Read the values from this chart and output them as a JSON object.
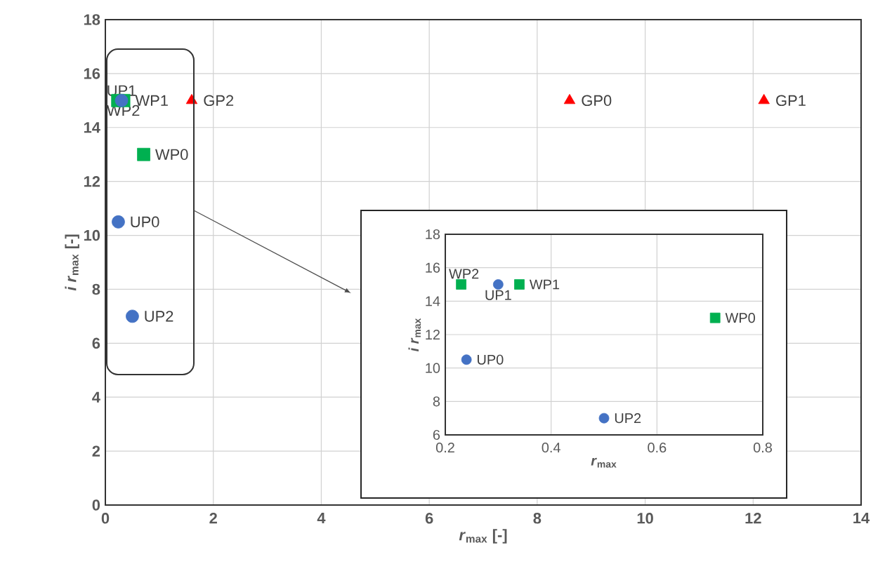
{
  "chart_data": [
    {
      "type": "scatter",
      "xlabel": "*r*$_{max}$ [-]",
      "ylabel": "*i r*$_{max}$ [-]",
      "xlim": [
        0,
        14
      ],
      "ylim": [
        0,
        18
      ],
      "xticks": [
        0,
        2,
        4,
        6,
        8,
        10,
        12,
        14
      ],
      "yticks": [
        0,
        2,
        4,
        6,
        8,
        10,
        12,
        14,
        16,
        18
      ],
      "grid": true,
      "series": [
        {
          "name": "UP0",
          "color": "#4472c4",
          "marker": "circle",
          "x": [
            0.24
          ],
          "values": [
            10.5
          ]
        },
        {
          "name": "UP1",
          "color": "#4472c4",
          "marker": "circle",
          "x": [
            0.3
          ],
          "values": [
            15
          ]
        },
        {
          "name": "UP2",
          "color": "#4472c4",
          "marker": "circle",
          "x": [
            0.5
          ],
          "values": [
            7
          ]
        },
        {
          "name": "WP0",
          "color": "#00b050",
          "marker": "square",
          "x": [
            0.71
          ],
          "values": [
            13
          ]
        },
        {
          "name": "WP1",
          "color": "#00b050",
          "marker": "square",
          "x": [
            0.34
          ],
          "values": [
            15
          ]
        },
        {
          "name": "WP2",
          "color": "#00b050",
          "marker": "square",
          "x": [
            0.23
          ],
          "values": [
            15
          ]
        },
        {
          "name": "GP0",
          "color": "#ff0000",
          "marker": "triangle",
          "x": [
            8.6
          ],
          "values": [
            15
          ]
        },
        {
          "name": "GP1",
          "color": "#ff0000",
          "marker": "triangle",
          "x": [
            12.2
          ],
          "values": [
            15
          ]
        },
        {
          "name": "GP2",
          "color": "#ff0000",
          "marker": "triangle",
          "x": [
            1.6
          ],
          "values": [
            15
          ]
        }
      ]
    },
    {
      "type": "scatter",
      "xlabel": "*r*$_{max}$",
      "ylabel": "*i r*$_{max}$",
      "xlim": [
        0.2,
        0.8
      ],
      "ylim": [
        6,
        18
      ],
      "xticks": [
        0.2,
        0.4,
        0.6,
        0.8
      ],
      "yticks": [
        6,
        8,
        10,
        12,
        14,
        16,
        18
      ],
      "grid": true,
      "series": [
        {
          "name": "UP0",
          "color": "#4472c4",
          "marker": "circle",
          "x": [
            0.24
          ],
          "values": [
            10.5
          ]
        },
        {
          "name": "UP1",
          "color": "#4472c4",
          "marker": "circle",
          "x": [
            0.3
          ],
          "values": [
            15
          ]
        },
        {
          "name": "UP2",
          "color": "#4472c4",
          "marker": "circle",
          "x": [
            0.5
          ],
          "values": [
            7
          ]
        },
        {
          "name": "WP0",
          "color": "#00b050",
          "marker": "square",
          "x": [
            0.71
          ],
          "values": [
            13
          ]
        },
        {
          "name": "WP1",
          "color": "#00b050",
          "marker": "square",
          "x": [
            0.34
          ],
          "values": [
            15
          ]
        },
        {
          "name": "WP2",
          "color": "#00b050",
          "marker": "square",
          "x": [
            0.23
          ],
          "values": [
            15
          ]
        }
      ]
    }
  ]
}
